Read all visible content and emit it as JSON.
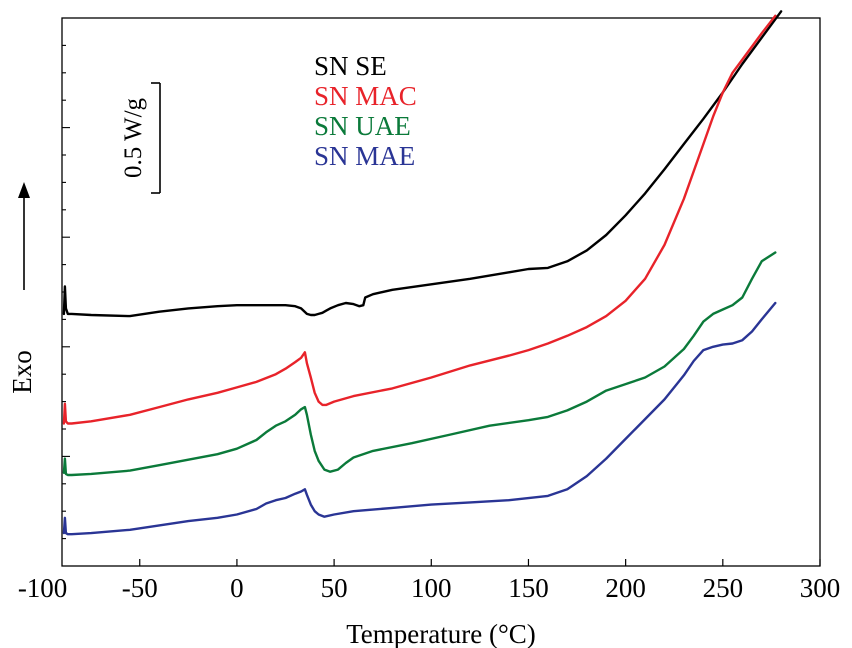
{
  "chart_data": {
    "type": "line",
    "title": "",
    "xlabel": "Temperature (°C)",
    "ylabel": "Exo",
    "xlim": [
      -90,
      300
    ],
    "ylim": [
      0,
      5
    ],
    "x_ticks": [
      -100,
      -50,
      0,
      50,
      100,
      150,
      200,
      250,
      300
    ],
    "x_tick_labels": [
      "-100",
      "-50",
      "0",
      "50",
      "100",
      "150",
      "200",
      "250",
      "300"
    ],
    "y_tick_labels_shown": false,
    "grid": false,
    "legend_position": "top-center",
    "scale_bar": {
      "label": "0.5 W/g",
      "value": 0.5
    },
    "colors": {
      "SN SE": "#000000",
      "SN MAC": "#e8232a",
      "SN UAE": "#0b7a3a",
      "SN MAE": "#2a3595"
    },
    "series": [
      {
        "name": "SN SE",
        "x": [
          -89,
          -88.5,
          -88,
          -87,
          -85,
          -75,
          -55,
          -40,
          -25,
          -10,
          0,
          10,
          20,
          25,
          30,
          33,
          36,
          38,
          40,
          42,
          44,
          46,
          48,
          52,
          56,
          60,
          63,
          65,
          66,
          70,
          80,
          100,
          120,
          140,
          150,
          160,
          170,
          180,
          190,
          200,
          210,
          220,
          230,
          240,
          250,
          260,
          270,
          280
        ],
        "y": [
          2.3,
          2.55,
          2.35,
          2.3,
          2.3,
          2.29,
          2.28,
          2.32,
          2.35,
          2.37,
          2.38,
          2.38,
          2.38,
          2.38,
          2.37,
          2.35,
          2.3,
          2.29,
          2.29,
          2.3,
          2.31,
          2.33,
          2.35,
          2.38,
          2.4,
          2.39,
          2.37,
          2.38,
          2.45,
          2.48,
          2.52,
          2.57,
          2.62,
          2.68,
          2.71,
          2.72,
          2.78,
          2.88,
          3.02,
          3.2,
          3.4,
          3.62,
          3.85,
          4.08,
          4.32,
          4.58,
          4.82,
          5.06
        ]
      },
      {
        "name": "SN MAC",
        "x": [
          -89,
          -88.5,
          -88,
          -87,
          -85,
          -75,
          -55,
          -40,
          -25,
          -10,
          0,
          10,
          20,
          25,
          30,
          33,
          35,
          36,
          38,
          40,
          42,
          44,
          46,
          50,
          60,
          80,
          100,
          120,
          140,
          150,
          160,
          170,
          180,
          190,
          200,
          210,
          220,
          230,
          240,
          245,
          250,
          255,
          260,
          265,
          270,
          277
        ],
        "y": [
          1.3,
          1.48,
          1.32,
          1.3,
          1.3,
          1.32,
          1.38,
          1.45,
          1.52,
          1.58,
          1.63,
          1.68,
          1.75,
          1.8,
          1.86,
          1.9,
          1.95,
          1.85,
          1.72,
          1.58,
          1.5,
          1.47,
          1.47,
          1.5,
          1.55,
          1.62,
          1.72,
          1.83,
          1.92,
          1.97,
          2.03,
          2.1,
          2.18,
          2.28,
          2.42,
          2.62,
          2.93,
          3.35,
          3.85,
          4.1,
          4.32,
          4.5,
          4.62,
          4.74,
          4.86,
          5.02
        ]
      },
      {
        "name": "SN UAE",
        "x": [
          -89,
          -88.5,
          -88,
          -87,
          -85,
          -75,
          -55,
          -40,
          -25,
          -10,
          0,
          10,
          15,
          20,
          25,
          30,
          33,
          35,
          36,
          38,
          40,
          42,
          45,
          48,
          52,
          56,
          60,
          70,
          90,
          110,
          130,
          150,
          160,
          170,
          180,
          190,
          200,
          210,
          220,
          230,
          235,
          240,
          245,
          250,
          255,
          260,
          265,
          270,
          277
        ],
        "y": [
          0.85,
          0.98,
          0.84,
          0.83,
          0.83,
          0.84,
          0.87,
          0.92,
          0.97,
          1.02,
          1.07,
          1.15,
          1.22,
          1.28,
          1.32,
          1.38,
          1.43,
          1.45,
          1.38,
          1.2,
          1.05,
          0.96,
          0.88,
          0.86,
          0.88,
          0.94,
          0.99,
          1.05,
          1.12,
          1.2,
          1.28,
          1.33,
          1.36,
          1.42,
          1.5,
          1.6,
          1.66,
          1.72,
          1.82,
          1.98,
          2.1,
          2.23,
          2.3,
          2.34,
          2.38,
          2.45,
          2.62,
          2.78,
          2.86
        ]
      },
      {
        "name": "SN MAE",
        "x": [
          -89,
          -88.5,
          -88,
          -87,
          -85,
          -75,
          -55,
          -40,
          -25,
          -10,
          0,
          10,
          15,
          20,
          25,
          30,
          33,
          35,
          36,
          38,
          40,
          42,
          45,
          50,
          60,
          80,
          100,
          120,
          140,
          160,
          170,
          180,
          190,
          200,
          210,
          220,
          230,
          235,
          240,
          245,
          250,
          255,
          260,
          265,
          270,
          277
        ],
        "y": [
          0.3,
          0.44,
          0.3,
          0.29,
          0.29,
          0.3,
          0.33,
          0.37,
          0.41,
          0.44,
          0.47,
          0.52,
          0.57,
          0.6,
          0.62,
          0.66,
          0.68,
          0.7,
          0.65,
          0.56,
          0.5,
          0.47,
          0.45,
          0.47,
          0.5,
          0.53,
          0.56,
          0.58,
          0.6,
          0.64,
          0.7,
          0.82,
          0.98,
          1.16,
          1.34,
          1.52,
          1.74,
          1.87,
          1.97,
          2.0,
          2.02,
          2.03,
          2.06,
          2.14,
          2.25,
          2.4
        ]
      }
    ]
  }
}
